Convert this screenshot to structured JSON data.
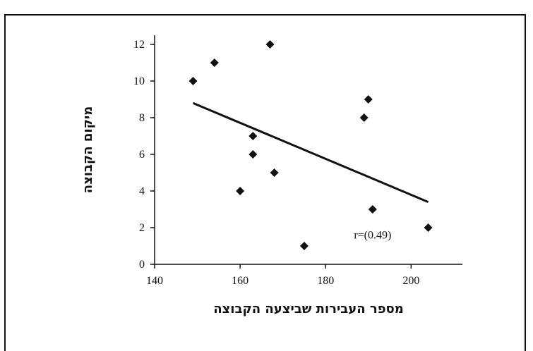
{
  "chart_data": {
    "type": "scatter",
    "xlabel": "מספר העבירות שביצעה הקבוצה",
    "ylabel": "מיקום הקבוצה",
    "xlim": [
      140,
      212
    ],
    "ylim": [
      0,
      12.5
    ],
    "x_ticks": [
      140,
      160,
      180,
      200
    ],
    "y_ticks": [
      0,
      2,
      4,
      6,
      8,
      10,
      12
    ],
    "grid": false,
    "legend": "none",
    "marker_color": "#111111",
    "points": [
      {
        "x": 149,
        "y": 10
      },
      {
        "x": 154,
        "y": 11
      },
      {
        "x": 167,
        "y": 12
      },
      {
        "x": 163,
        "y": 7
      },
      {
        "x": 163,
        "y": 6
      },
      {
        "x": 168,
        "y": 5
      },
      {
        "x": 160,
        "y": 4
      },
      {
        "x": 175,
        "y": 1
      },
      {
        "x": 189,
        "y": 8
      },
      {
        "x": 190,
        "y": 9
      },
      {
        "x": 191,
        "y": 3
      },
      {
        "x": 204,
        "y": 2
      }
    ],
    "trendline": {
      "x": [
        149,
        204
      ],
      "y": [
        8.8,
        3.4
      ]
    },
    "annotations": [
      {
        "text": "r=(0.49)",
        "x": 191,
        "y": 1.4
      }
    ]
  }
}
